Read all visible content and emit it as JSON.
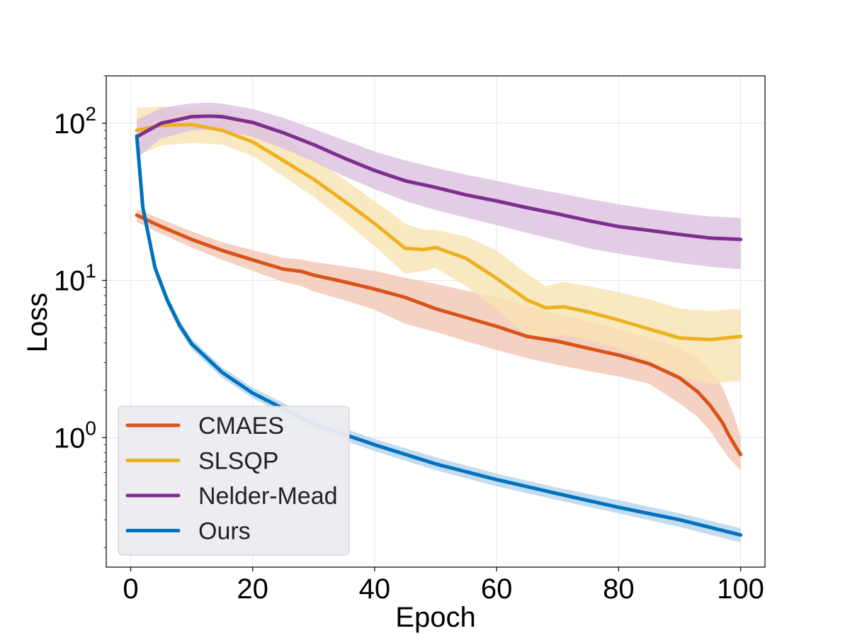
{
  "chart_data": {
    "type": "line",
    "title": "",
    "xlabel": "Epoch",
    "ylabel": "Loss",
    "yscale": "log",
    "xlim": [
      -4,
      104
    ],
    "ylim": [
      0.15,
      200
    ],
    "grid": true,
    "x_ticks": [
      0,
      20,
      40,
      60,
      80,
      100
    ],
    "x_tick_labels": [
      "0",
      "20",
      "40",
      "60",
      "80",
      "100"
    ],
    "y_ticks": [
      1,
      10,
      100
    ],
    "y_tick_bases": [
      "10",
      "10",
      "10"
    ],
    "y_tick_exponents": [
      "0",
      "1",
      "2"
    ],
    "legend_position": "bottom-left",
    "series": [
      {
        "name": "CMAES",
        "color": "#d95319",
        "band_color": "#f2c6b4",
        "x": [
          1,
          5,
          10,
          15,
          20,
          25,
          28,
          30,
          35,
          40,
          45,
          50,
          55,
          60,
          65,
          70,
          75,
          80,
          85,
          90,
          93,
          95,
          97,
          98,
          99,
          100
        ],
        "values": [
          26,
          22,
          18.2,
          15.5,
          13.5,
          11.8,
          11.4,
          10.8,
          9.8,
          8.8,
          7.8,
          6.6,
          5.8,
          5.1,
          4.4,
          4.1,
          3.7,
          3.35,
          2.95,
          2.4,
          1.95,
          1.6,
          1.25,
          1.05,
          0.9,
          0.78
        ],
        "lower": [
          23.5,
          19.8,
          16.2,
          13.5,
          11.5,
          9.8,
          9.2,
          8.5,
          7.5,
          6.5,
          5.3,
          4.7,
          4.1,
          3.6,
          3.2,
          2.9,
          2.65,
          2.45,
          2.2,
          1.65,
          1.35,
          1.1,
          0.85,
          0.75,
          0.68,
          0.62
        ],
        "upper": [
          28.5,
          24.5,
          20.5,
          17.5,
          15.6,
          13.9,
          13.6,
          13.1,
          12.3,
          11.5,
          10.4,
          9.5,
          8.6,
          7.8,
          6.9,
          6.1,
          5.5,
          4.9,
          4.3,
          3.7,
          3.2,
          2.7,
          2.1,
          1.7,
          1.35,
          1.0
        ]
      },
      {
        "name": "SLSQP",
        "color": "#edb120",
        "band_color": "#f8e3b2",
        "x": [
          1,
          5,
          10,
          15,
          20,
          25,
          30,
          35,
          40,
          45,
          48,
          50,
          55,
          60,
          65,
          68,
          71,
          75,
          80,
          85,
          90,
          95,
          100
        ],
        "values": [
          90,
          97,
          98,
          90,
          76,
          58,
          44,
          32,
          23,
          16,
          15.7,
          16.2,
          13.8,
          10.3,
          7.5,
          6.7,
          6.8,
          6.3,
          5.6,
          4.9,
          4.3,
          4.2,
          4.4
        ],
        "lower": [
          62,
          72,
          75,
          73,
          62,
          46,
          34,
          24,
          16.5,
          11,
          11.5,
          12,
          9.2,
          6.5,
          4.5,
          4.3,
          4.5,
          4.2,
          3.7,
          3.1,
          2.5,
          2.2,
          2.3
        ],
        "upper": [
          125,
          128,
          124,
          118,
          106,
          82,
          60,
          44,
          32,
          23,
          21,
          21,
          19,
          15.5,
          11,
          9.2,
          9.8,
          9.2,
          8.4,
          7.6,
          6.6,
          6.4,
          6.6
        ]
      },
      {
        "name": "Nelder-Mead",
        "color": "#7e2f8e",
        "band_color": "#dcbfe0",
        "x": [
          1,
          5,
          10,
          13,
          15,
          20,
          25,
          30,
          35,
          40,
          45,
          50,
          55,
          60,
          65,
          70,
          75,
          80,
          85,
          90,
          95,
          100
        ],
        "values": [
          82,
          100,
          110,
          111,
          110,
          101,
          87,
          73,
          60,
          50,
          43,
          39,
          35,
          32,
          29,
          26.5,
          24,
          22,
          20.8,
          19.6,
          18.6,
          18.2
        ],
        "lower": [
          60,
          80,
          90,
          91,
          90,
          82,
          69,
          57,
          46,
          38,
          32,
          28,
          25,
          22.5,
          20,
          18,
          16,
          14.8,
          13.8,
          12.9,
          12.2,
          11.8
        ],
        "upper": [
          105,
          125,
          134,
          135,
          133,
          123,
          108,
          92,
          78,
          66,
          58,
          52,
          47,
          43,
          39,
          36,
          33,
          30.5,
          28.5,
          26.8,
          25.5,
          25
        ]
      },
      {
        "name": "Ours",
        "color": "#0072bd",
        "band_color": "#b4d3eb",
        "x": [
          1,
          2,
          4,
          6,
          8,
          10,
          15,
          20,
          30,
          40,
          50,
          60,
          70,
          80,
          90,
          100
        ],
        "values": [
          83,
          29,
          12,
          7.5,
          5.2,
          3.95,
          2.6,
          1.92,
          1.22,
          0.9,
          0.68,
          0.54,
          0.44,
          0.36,
          0.3,
          0.24
        ],
        "lower": [
          78,
          26.5,
          11,
          6.9,
          4.8,
          3.65,
          2.4,
          1.78,
          1.12,
          0.82,
          0.62,
          0.49,
          0.4,
          0.33,
          0.27,
          0.215
        ],
        "upper": [
          88,
          31.5,
          13,
          8.1,
          5.6,
          4.25,
          2.8,
          2.08,
          1.33,
          0.98,
          0.75,
          0.59,
          0.48,
          0.4,
          0.33,
          0.265
        ]
      }
    ]
  }
}
